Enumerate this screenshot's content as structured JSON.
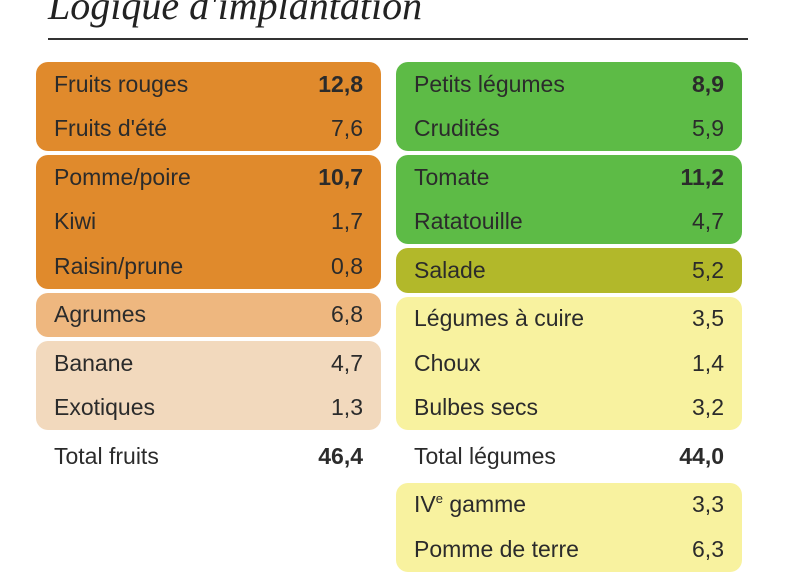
{
  "title": "Logique d'implantation",
  "fruits": {
    "groups": [
      {
        "color": "#e08a2c",
        "rows": [
          {
            "label": "Fruits rouges",
            "value": "12,8",
            "bold": true
          },
          {
            "label": "Fruits d'été",
            "value": "7,6",
            "bold": false
          }
        ]
      },
      {
        "color": "#e08a2c",
        "rows": [
          {
            "label": "Pomme/poire",
            "value": "10,7",
            "bold": true
          },
          {
            "label": "Kiwi",
            "value": "1,7",
            "bold": false
          },
          {
            "label": "Raisin/prune",
            "value": "0,8",
            "bold": false
          }
        ]
      },
      {
        "color": "#eeb77f",
        "rows": [
          {
            "label": "Agrumes",
            "value": "6,8",
            "bold": false
          }
        ]
      },
      {
        "color": "#f2d9bd",
        "rows": [
          {
            "label": "Banane",
            "value": "4,7",
            "bold": false
          },
          {
            "label": "Exotiques",
            "value": "1,3",
            "bold": false
          }
        ]
      }
    ],
    "total": {
      "label": "Total fruits",
      "value": "46,4"
    }
  },
  "legumes": {
    "groups": [
      {
        "color": "#5dbb46",
        "rows": [
          {
            "label": "Petits légumes",
            "value": "8,9",
            "bold": true
          },
          {
            "label": "Crudités",
            "value": "5,9",
            "bold": false
          }
        ]
      },
      {
        "color": "#5dbb46",
        "rows": [
          {
            "label": "Tomate",
            "value": "11,2",
            "bold": true
          },
          {
            "label": "Ratatouille",
            "value": "4,7",
            "bold": false
          }
        ]
      },
      {
        "color": "#b2b82a",
        "rows": [
          {
            "label": "Salade",
            "value": "5,2",
            "bold": false
          }
        ]
      },
      {
        "color": "#f8f29f",
        "rows": [
          {
            "label": "Légumes à cuire",
            "value": "3,5",
            "bold": false
          },
          {
            "label": "Choux",
            "value": "1,4",
            "bold": false
          },
          {
            "label": "Bulbes secs",
            "value": "3,2",
            "bold": false
          }
        ]
      }
    ],
    "total": {
      "label": "Total légumes",
      "value": "44,0"
    },
    "after_groups": [
      {
        "color": "#f8f29f",
        "rows": [
          {
            "label": "IV",
            "sup": "e",
            "label_rest": " gamme",
            "value": "3,3",
            "bold": false
          },
          {
            "label": "Pomme de terre",
            "value": "6,3",
            "bold": false
          }
        ]
      }
    ]
  }
}
